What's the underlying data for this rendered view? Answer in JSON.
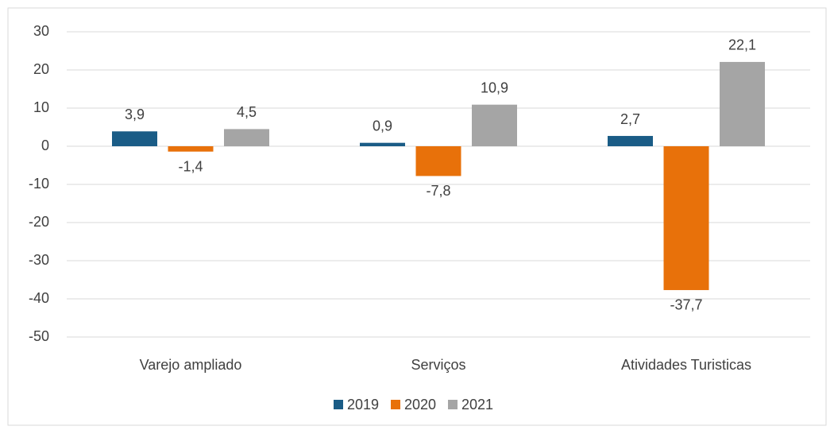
{
  "chart_data": {
    "type": "bar",
    "categories": [
      "Varejo ampliado",
      "Serviços",
      "Atividades Turisticas"
    ],
    "series": [
      {
        "name": "2019",
        "color": "#1a5c86",
        "values": [
          3.9,
          0.9,
          2.7
        ],
        "value_labels": [
          "3,9",
          "0,9",
          "2,7"
        ]
      },
      {
        "name": "2020",
        "color": "#e8710a",
        "values": [
          -1.4,
          -7.8,
          -37.7
        ],
        "value_labels": [
          "-1,4",
          "-7,8",
          "-37,7"
        ]
      },
      {
        "name": "2021",
        "color": "#a5a5a5",
        "values": [
          4.5,
          10.9,
          22.1
        ],
        "value_labels": [
          "4,5",
          "10,9",
          "22,1"
        ]
      }
    ],
    "ylim": [
      -50,
      30
    ],
    "yticks": [
      -50,
      -40,
      -30,
      -20,
      -10,
      0,
      10,
      20,
      30
    ],
    "grid": true,
    "legend": "bottom"
  }
}
